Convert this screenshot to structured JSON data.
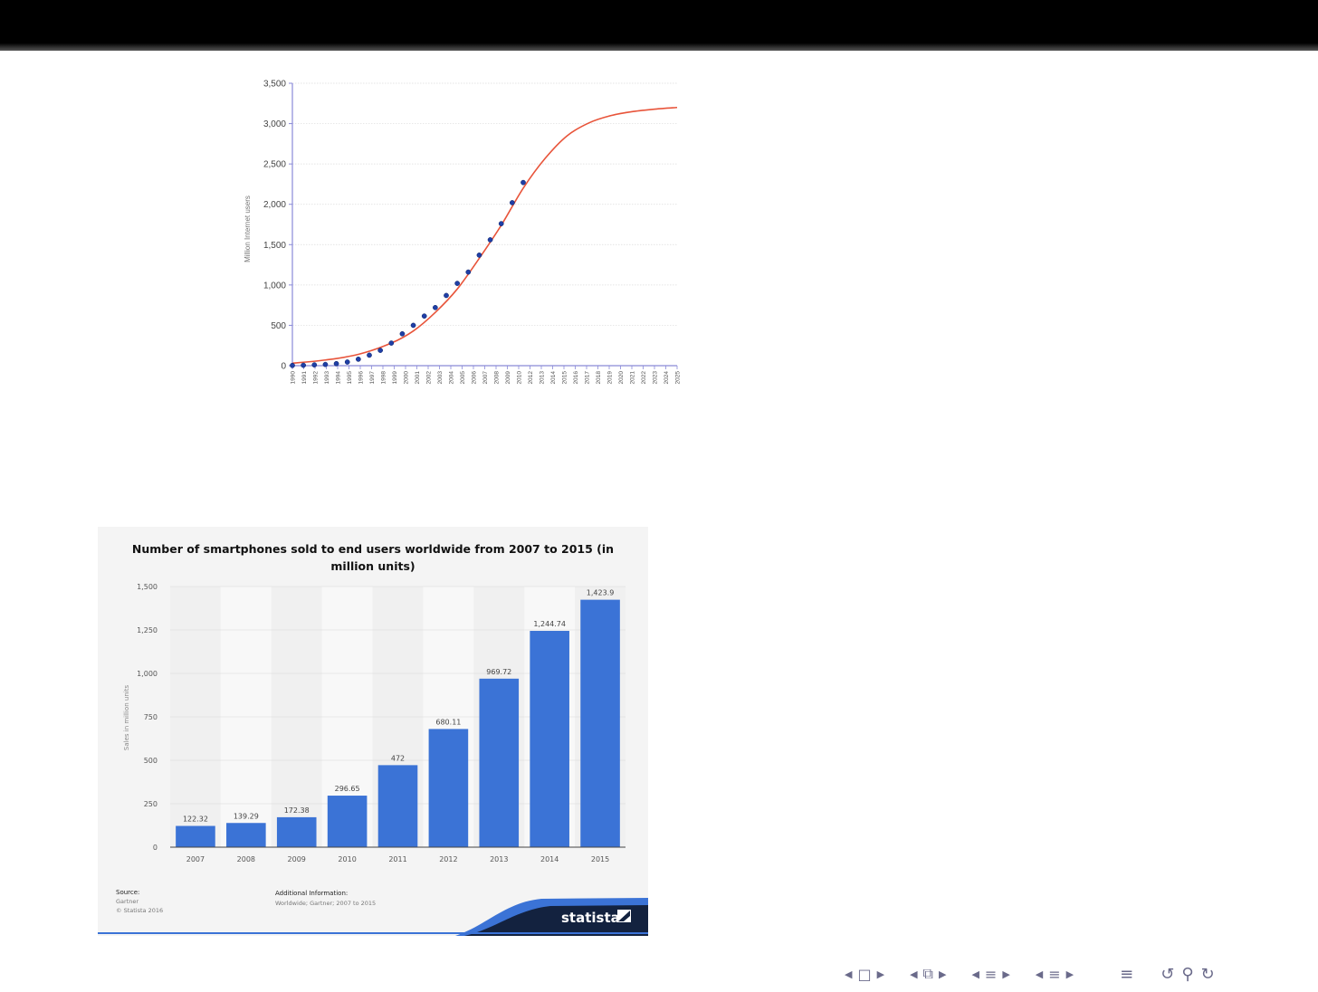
{
  "chart_data": [
    {
      "type": "scatter",
      "ylabel": "Million Internet users",
      "xlim": [
        1990,
        2025
      ],
      "ylim": [
        0,
        3500
      ],
      "yticks": [
        0,
        500,
        1000,
        1500,
        2000,
        2500,
        3000,
        3500
      ],
      "ytick_labels": [
        "0",
        "500",
        "1,000",
        "1,500",
        "2,000",
        "2,500",
        "3,000",
        "3,500"
      ],
      "xtick_labels": [
        "1990",
        "1991",
        "1992",
        "1993",
        "1994",
        "1995",
        "1996",
        "1997",
        "1998",
        "1999",
        "2000",
        "2001",
        "2002",
        "2003",
        "2004",
        "2005",
        "2006",
        "2007",
        "2008",
        "2009",
        "2010",
        "2012",
        "2013",
        "2014",
        "2015",
        "2016",
        "2017",
        "2018",
        "2019",
        "2020",
        "2021",
        "2022",
        "2023",
        "2024",
        "2025"
      ],
      "points": {
        "x": [
          1990,
          1991,
          1992,
          1993,
          1994,
          1995,
          1996,
          1997,
          1998,
          1999,
          2000,
          2001,
          2002,
          2003,
          2004,
          2005,
          2006,
          2007,
          2008,
          2009,
          2010,
          2011
        ],
        "y": [
          3,
          5,
          10,
          15,
          25,
          45,
          80,
          130,
          190,
          280,
          395,
          500,
          615,
          720,
          870,
          1020,
          1160,
          1370,
          1560,
          1760,
          2020,
          2270
        ]
      },
      "curve": {
        "x": [
          1990,
          1993,
          1996,
          1999,
          2001,
          2003,
          2005,
          2007,
          2009,
          2011,
          2013,
          2015,
          2017,
          2019,
          2021,
          2023,
          2025
        ],
        "y": [
          30,
          70,
          140,
          280,
          430,
          660,
          950,
          1330,
          1740,
          2200,
          2570,
          2850,
          3010,
          3100,
          3150,
          3180,
          3200
        ]
      },
      "point_color": "#1f3fa6",
      "curve_color": "#e8543a",
      "grid": true
    },
    {
      "type": "bar",
      "title": "Number of smartphones sold to end users worldwide from 2007 to 2015 (in million units)",
      "title_lines": [
        "Number of smartphones sold to end users worldwide from 2007 to 2015 (in",
        "million units)"
      ],
      "categories": [
        "2007",
        "2008",
        "2009",
        "2010",
        "2011",
        "2012",
        "2013",
        "2014",
        "2015"
      ],
      "values": [
        122.32,
        139.29,
        172.38,
        296.65,
        472,
        680.11,
        969.72,
        1244.74,
        1423.9
      ],
      "value_labels": [
        "122.32",
        "139.29",
        "172.38",
        "296.65",
        "472",
        "680.11",
        "969.72",
        "1,244.74",
        "1,423.9"
      ],
      "ylabel": "Sales in million units",
      "ylim": [
        0,
        1500
      ],
      "yticks": [
        0,
        250,
        500,
        750,
        1000,
        1250,
        1500
      ],
      "ytick_labels": [
        "0",
        "250",
        "500",
        "750",
        "1,000",
        "1,250",
        "1,500"
      ],
      "bar_color": "#3b73d6",
      "grid": true,
      "footer": {
        "source_label": "Source:",
        "source_lines": [
          "Gartner",
          "© Statista 2016"
        ],
        "info_label": "Additional Information:",
        "info_text": "Worldwide; Gartner; 2007 to 2015",
        "brand": "statista"
      }
    }
  ],
  "nav": {
    "icons": [
      "frame-prev-icon",
      "frame-icon",
      "frame-next-icon",
      "subsection-prev-icon",
      "subsection-icon",
      "subsection-next-icon",
      "section-prev-icon",
      "section-icon",
      "section-next-icon",
      "sub-prev-icon",
      "sub-icon",
      "sub-next-icon",
      "align-icon",
      "undo-icon",
      "search-icon",
      "redo-icon"
    ]
  }
}
